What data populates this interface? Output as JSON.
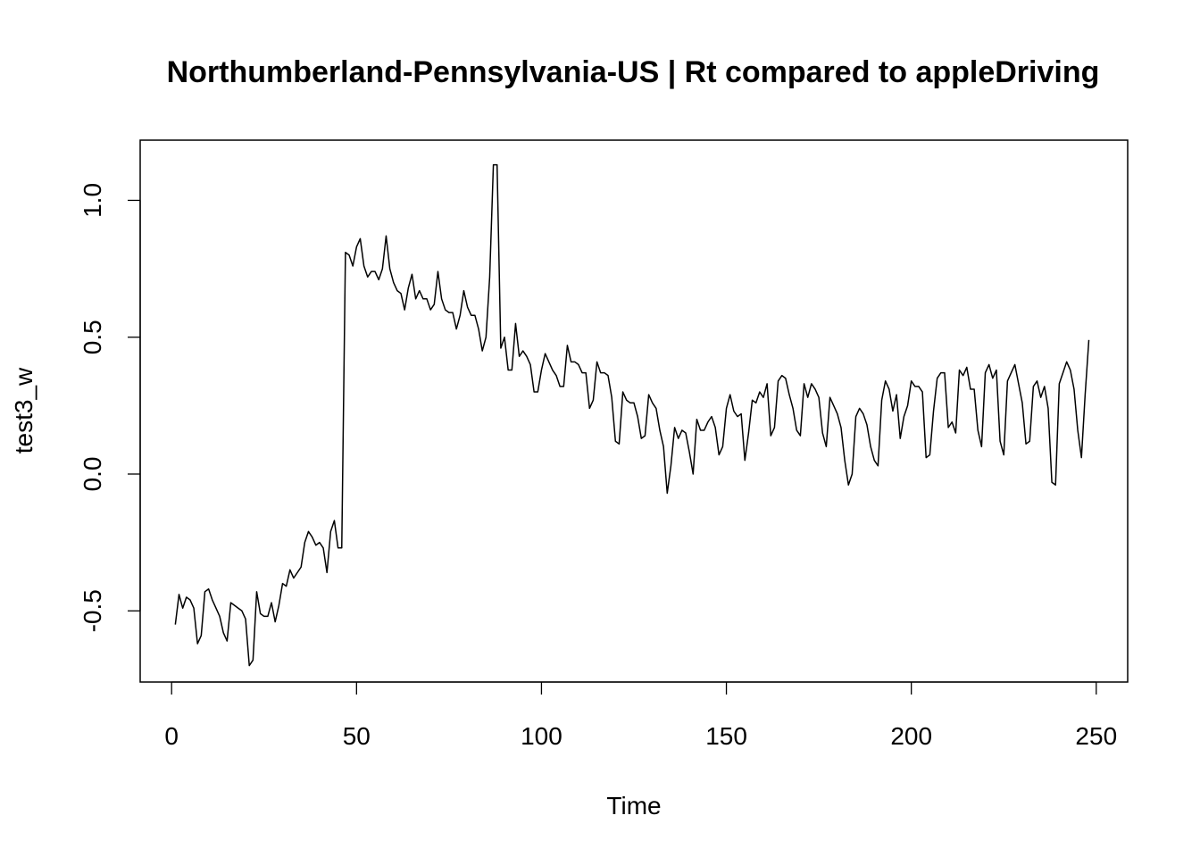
{
  "chart_data": {
    "type": "line",
    "title": "Northumberland-Pennsylvania-US | Rt compared to appleDriving",
    "xlabel": "Time",
    "ylabel": "test3_w",
    "xlim": [
      -8.5,
      258.5
    ],
    "ylim": [
      -0.76,
      1.22
    ],
    "x_ticks": [
      0,
      50,
      100,
      150,
      200,
      250
    ],
    "x_tick_labels": [
      "0",
      "50",
      "100",
      "150",
      "200",
      "250"
    ],
    "y_ticks": [
      -0.5,
      0.0,
      0.5,
      1.0
    ],
    "y_tick_labels": [
      "-0.5",
      "0.0",
      "0.5",
      "1.0"
    ],
    "grid": false,
    "legend": "none",
    "line_color": "#000000",
    "series": [
      {
        "x_start": 1,
        "x_step": 1,
        "values": [
          -0.55,
          -0.44,
          -0.49,
          -0.45,
          -0.46,
          -0.49,
          -0.62,
          -0.59,
          -0.43,
          -0.42,
          -0.46,
          -0.49,
          -0.52,
          -0.58,
          -0.61,
          -0.47,
          -0.48,
          -0.49,
          -0.5,
          -0.53,
          -0.7,
          -0.68,
          -0.43,
          -0.51,
          -0.52,
          -0.52,
          -0.47,
          -0.54,
          -0.48,
          -0.4,
          -0.41,
          -0.35,
          -0.38,
          -0.36,
          -0.34,
          -0.25,
          -0.21,
          -0.23,
          -0.26,
          -0.25,
          -0.27,
          -0.36,
          -0.21,
          -0.17,
          -0.27,
          -0.27,
          0.81,
          0.8,
          0.76,
          0.83,
          0.86,
          0.76,
          0.72,
          0.74,
          0.74,
          0.71,
          0.75,
          0.87,
          0.75,
          0.7,
          0.67,
          0.66,
          0.6,
          0.68,
          0.73,
          0.64,
          0.67,
          0.64,
          0.64,
          0.6,
          0.62,
          0.74,
          0.64,
          0.6,
          0.59,
          0.59,
          0.53,
          0.58,
          0.67,
          0.61,
          0.58,
          0.58,
          0.53,
          0.45,
          0.5,
          0.72,
          1.13,
          1.13,
          0.46,
          0.5,
          0.38,
          0.38,
          0.55,
          0.43,
          0.45,
          0.43,
          0.4,
          0.3,
          0.3,
          0.38,
          0.44,
          0.41,
          0.38,
          0.36,
          0.32,
          0.32,
          0.47,
          0.41,
          0.41,
          0.4,
          0.37,
          0.37,
          0.24,
          0.27,
          0.41,
          0.37,
          0.37,
          0.36,
          0.28,
          0.12,
          0.11,
          0.3,
          0.27,
          0.26,
          0.26,
          0.21,
          0.13,
          0.14,
          0.29,
          0.26,
          0.24,
          0.16,
          0.1,
          -0.07,
          0.03,
          0.17,
          0.13,
          0.16,
          0.15,
          0.08,
          0.0,
          0.2,
          0.16,
          0.16,
          0.19,
          0.21,
          0.17,
          0.07,
          0.1,
          0.24,
          0.29,
          0.23,
          0.21,
          0.22,
          0.05,
          0.15,
          0.27,
          0.26,
          0.3,
          0.28,
          0.33,
          0.14,
          0.17,
          0.34,
          0.36,
          0.35,
          0.29,
          0.24,
          0.16,
          0.14,
          0.33,
          0.28,
          0.33,
          0.31,
          0.28,
          0.15,
          0.1,
          0.28,
          0.25,
          0.22,
          0.17,
          0.05,
          -0.04,
          0.0,
          0.21,
          0.24,
          0.22,
          0.18,
          0.1,
          0.05,
          0.03,
          0.27,
          0.34,
          0.31,
          0.23,
          0.29,
          0.13,
          0.21,
          0.25,
          0.34,
          0.32,
          0.32,
          0.3,
          0.06,
          0.07,
          0.23,
          0.35,
          0.37,
          0.37,
          0.17,
          0.19,
          0.15,
          0.38,
          0.36,
          0.39,
          0.31,
          0.31,
          0.16,
          0.1,
          0.37,
          0.4,
          0.35,
          0.38,
          0.12,
          0.07,
          0.34,
          0.37,
          0.4,
          0.33,
          0.26,
          0.11,
          0.12,
          0.32,
          0.34,
          0.28,
          0.32,
          0.24,
          -0.03,
          -0.04,
          0.33,
          0.37,
          0.41,
          0.38,
          0.31,
          0.16,
          0.06,
          0.29,
          0.49
        ]
      }
    ]
  }
}
